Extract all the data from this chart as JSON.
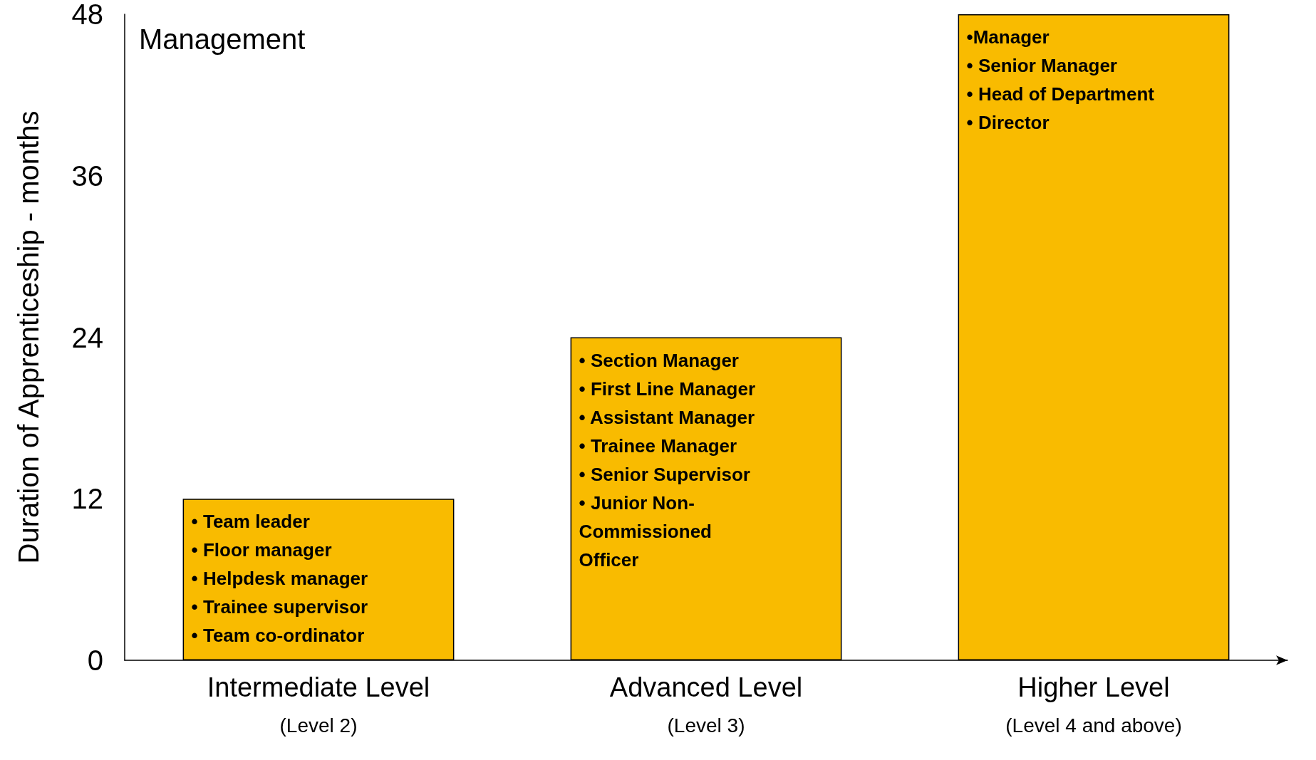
{
  "chart_data": {
    "type": "bar",
    "title": "Management",
    "ylabel": "Duration of Apprenticeship - months",
    "categories": [
      "Intermediate Level\n(Level 2)",
      "Advanced Level\n(Level 3)",
      "Higher Level\n(Level 4 and above)"
    ],
    "values": [
      12,
      24,
      48
    ],
    "color": "#f9bb00",
    "ylim": [
      0,
      48
    ],
    "yticks": [
      0,
      12,
      24,
      36,
      48
    ],
    "grid": false,
    "annotations": [
      "• Team leader\n• Floor manager\n• Helpdesk manager\n• Trainee supervisor\n• Team co-ordinator",
      "• Section Manager\n• First Line Manager\n• Assistant Manager\n• Trainee Manager\n• Senior Supervisor\n• Junior Non-\nCommissioned\nOfficer",
      "•Manager\n• Senior Manager\n• Head of Department\n• Director"
    ]
  }
}
